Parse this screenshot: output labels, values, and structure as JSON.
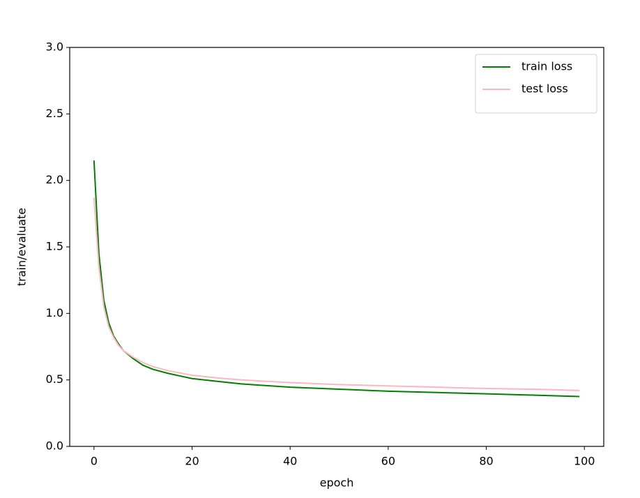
{
  "chart_data": {
    "type": "line",
    "x": [
      0,
      1,
      2,
      3,
      4,
      5,
      6,
      8,
      10,
      12,
      15,
      20,
      25,
      30,
      40,
      50,
      60,
      70,
      80,
      90,
      99
    ],
    "series": [
      {
        "name": "train loss",
        "color": "#008000",
        "values": [
          2.15,
          1.45,
          1.1,
          0.93,
          0.83,
          0.77,
          0.72,
          0.66,
          0.61,
          0.58,
          0.55,
          0.51,
          0.49,
          0.47,
          0.445,
          0.43,
          0.415,
          0.405,
          0.395,
          0.385,
          0.375
        ]
      },
      {
        "name": "test loss",
        "color": "#ffb6c1",
        "values": [
          1.87,
          1.35,
          1.05,
          0.9,
          0.82,
          0.76,
          0.72,
          0.67,
          0.63,
          0.6,
          0.57,
          0.535,
          0.515,
          0.5,
          0.48,
          0.465,
          0.455,
          0.445,
          0.435,
          0.43,
          0.42
        ]
      }
    ],
    "xlabel": "epoch",
    "ylabel": "train/evaluate",
    "xlim": [
      -4.95,
      103.95
    ],
    "xticks": [
      0,
      20,
      40,
      60,
      80,
      100
    ],
    "ylim": [
      0,
      3
    ],
    "yticks": [
      {
        "value": 0,
        "label": "0.0"
      },
      0.5,
      {
        "value": 1,
        "label": "1.0"
      },
      1.5,
      {
        "value": 2,
        "label": "2.0"
      },
      2.5,
      {
        "value": 3,
        "label": "3.0"
      }
    ],
    "legend": "upper right"
  }
}
